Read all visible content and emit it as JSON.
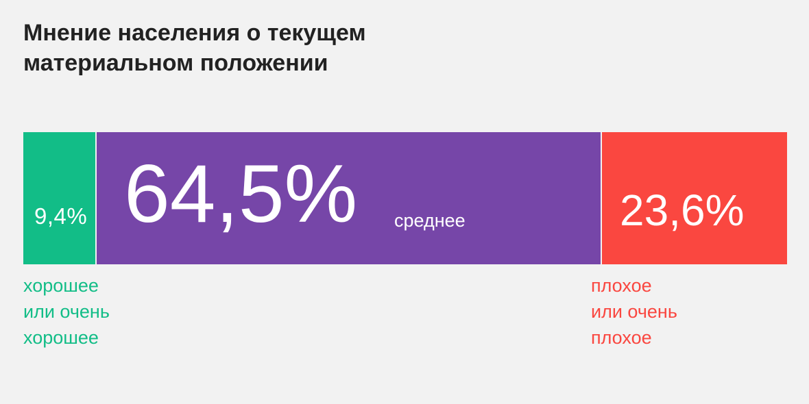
{
  "title_lines": [
    "Мнение населения о текущем",
    "материальном положении"
  ],
  "chart_data": {
    "type": "bar",
    "orientation": "horizontal-stacked",
    "total": 100,
    "segments": [
      {
        "value": 9.4,
        "value_text": "9,4%",
        "label_lines": [
          "хорошее",
          "или очень",
          "хорошее"
        ],
        "color": "#12bd87"
      },
      {
        "value": 64.5,
        "value_text": "64,5%",
        "label": "среднее",
        "color": "#7646a8"
      },
      {
        "value": 23.6,
        "value_text": "23,6%",
        "label_lines": [
          "плохое",
          "или очень",
          "плохое"
        ],
        "color": "#fa4740"
      }
    ]
  }
}
